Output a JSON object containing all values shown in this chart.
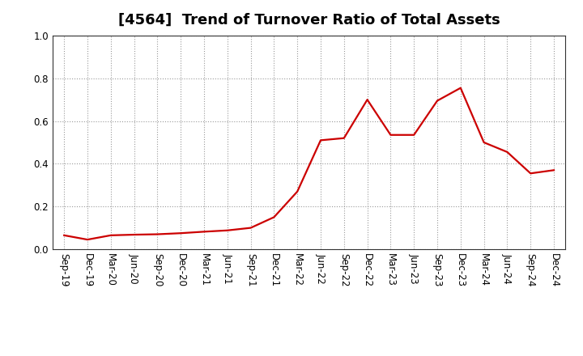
{
  "title": "[4564]  Trend of Turnover Ratio of Total Assets",
  "labels": [
    "Sep-19",
    "Dec-19",
    "Mar-20",
    "Jun-20",
    "Sep-20",
    "Dec-20",
    "Mar-21",
    "Jun-21",
    "Sep-21",
    "Dec-21",
    "Mar-22",
    "Jun-22",
    "Sep-22",
    "Dec-22",
    "Mar-23",
    "Jun-23",
    "Sep-23",
    "Dec-23",
    "Mar-24",
    "Jun-24",
    "Sep-24",
    "Dec-24"
  ],
  "values": [
    0.065,
    0.045,
    0.065,
    0.068,
    0.07,
    0.075,
    0.082,
    0.088,
    0.1,
    0.15,
    0.27,
    0.51,
    0.52,
    0.7,
    0.535,
    0.535,
    0.695,
    0.755,
    0.5,
    0.455,
    0.355,
    0.37
  ],
  "line_color": "#cc0000",
  "line_width": 1.6,
  "ylim": [
    0.0,
    1.0
  ],
  "yticks": [
    0.0,
    0.2,
    0.4,
    0.6,
    0.8,
    1.0
  ],
  "grid_color": "#999999",
  "background_color": "#ffffff",
  "title_fontsize": 13,
  "tick_fontsize": 8.5
}
